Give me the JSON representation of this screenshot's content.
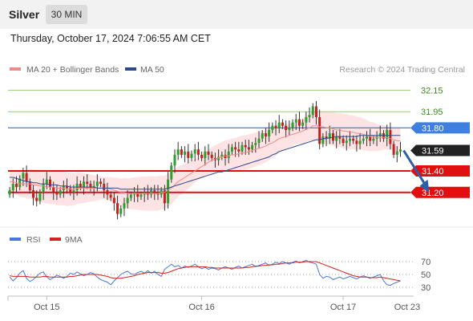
{
  "header": {
    "title": "Silver",
    "timeframe": "30 MIN"
  },
  "timestamp": "Thursday, October 17, 2024 7:06:55 AM CET",
  "legend": {
    "ma20": "MA 20 + Bollinger Bands",
    "ma50": "MA 50",
    "credit": "Research © 2024 Trading Central",
    "rsi": "RSI",
    "rsi_ma": "9MA"
  },
  "colors": {
    "up": "#2ca02c",
    "down": "#c81e1e",
    "band": "#fde3e3",
    "ma20": "#f08a8a",
    "ma50": "#2b4a8c",
    "resistance_green": "#9bc97a",
    "blue_level": "#3f7fe0",
    "red_level": "#e01010",
    "current": "#222222",
    "rsi": "#4a78d8",
    "rsi_ma": "#d42020"
  },
  "chart_data": [
    {
      "type": "candlestick",
      "title": "Silver",
      "y_axis": {
        "ylim": [
          30.9,
          32.28
        ],
        "side": "right"
      },
      "x_axis": {
        "ticks": [
          "Oct 15",
          "Oct 16",
          "Oct 17",
          "Oct 23"
        ]
      },
      "levels": [
        {
          "value": 32.15,
          "label": "32.15",
          "kind": "resistance"
        },
        {
          "value": 31.95,
          "label": "31.95",
          "kind": "resistance"
        },
        {
          "value": 31.8,
          "label": "31.80",
          "kind": "pivot"
        },
        {
          "value": 31.59,
          "label": "31.59",
          "kind": "current"
        },
        {
          "value": 31.4,
          "label": "31.40",
          "kind": "support"
        },
        {
          "value": 31.2,
          "label": "31.20",
          "kind": "support"
        }
      ],
      "close": [
        31.22,
        31.28,
        31.25,
        31.33,
        31.38,
        31.3,
        31.22,
        31.15,
        31.12,
        31.2,
        31.28,
        31.32,
        31.25,
        31.2,
        31.18,
        31.22,
        31.26,
        31.24,
        31.2,
        31.22,
        31.28,
        31.25,
        31.3,
        31.28,
        31.24,
        31.26,
        31.3,
        31.28,
        31.22,
        31.18,
        31.15,
        31.1,
        31.0,
        31.05,
        31.1,
        31.15,
        31.18,
        31.2,
        31.16,
        31.18,
        31.2,
        31.18,
        31.22,
        31.2,
        31.18,
        31.22,
        31.1,
        31.32,
        31.45,
        31.55,
        31.6,
        31.55,
        31.58,
        31.52,
        31.56,
        31.6,
        31.55,
        31.52,
        31.58,
        31.55,
        31.52,
        31.5,
        31.53,
        31.55,
        31.52,
        31.58,
        31.62,
        31.6,
        31.58,
        31.64,
        31.62,
        31.6,
        31.64,
        31.66,
        31.7,
        31.75,
        31.72,
        31.78,
        31.82,
        31.8,
        31.85,
        31.82,
        31.78,
        31.8,
        31.85,
        31.88,
        31.82,
        31.85,
        31.9,
        31.92,
        32.0,
        31.9,
        31.65,
        31.72,
        31.7,
        31.75,
        31.68,
        31.72,
        31.7,
        31.66,
        31.68,
        31.7,
        31.68,
        31.65,
        31.68,
        31.7,
        31.72,
        31.68,
        31.7,
        31.72,
        31.75,
        31.7,
        31.78,
        31.65,
        31.55,
        31.58,
        31.6
      ],
      "ma20": [
        31.3,
        31.3,
        31.29,
        31.28,
        31.28,
        31.28,
        31.28,
        31.27,
        31.27,
        31.26,
        31.26,
        31.25,
        31.25,
        31.25,
        31.24,
        31.24,
        31.24,
        31.23,
        31.23,
        31.23,
        31.24,
        31.24,
        31.24,
        31.24,
        31.24,
        31.24,
        31.24,
        31.24,
        31.24,
        31.24,
        31.23,
        31.22,
        31.21,
        31.2,
        31.2,
        31.19,
        31.19,
        31.19,
        31.19,
        31.19,
        31.19,
        31.19,
        31.19,
        31.19,
        31.19,
        31.2,
        31.2,
        31.22,
        31.24,
        31.27,
        31.3,
        31.32,
        31.34,
        31.36,
        31.38,
        31.4,
        31.42,
        31.44,
        31.46,
        31.48,
        31.5,
        31.51,
        31.52,
        31.53,
        31.54,
        31.54,
        31.55,
        31.55,
        31.56,
        31.57,
        31.57,
        31.58,
        31.59,
        31.6,
        31.61,
        31.62,
        31.63,
        31.65,
        31.66,
        31.68,
        31.7,
        31.71,
        31.72,
        31.73,
        31.74,
        31.75,
        31.76,
        31.77,
        31.79,
        31.8,
        31.82,
        31.82,
        31.81,
        31.81,
        31.8,
        31.8,
        31.79,
        31.78,
        31.78,
        31.77,
        31.77,
        31.76,
        31.76,
        31.75,
        31.75,
        31.74,
        31.73,
        31.72,
        31.72,
        31.71,
        31.71,
        31.71,
        31.71,
        31.7,
        31.69,
        31.68,
        31.68
      ],
      "ma50": [
        31.34,
        31.34,
        31.33,
        31.32,
        31.31,
        31.3,
        31.3,
        31.29,
        31.29,
        31.28,
        31.28,
        31.28,
        31.27,
        31.27,
        31.27,
        31.26,
        31.26,
        31.26,
        31.25,
        31.25,
        31.25,
        31.25,
        31.25,
        31.25,
        31.25,
        31.25,
        31.24,
        31.24,
        31.24,
        31.24,
        31.24,
        31.24,
        31.24,
        31.23,
        31.23,
        31.23,
        31.23,
        31.23,
        31.23,
        31.23,
        31.23,
        31.23,
        31.23,
        31.23,
        31.23,
        31.23,
        31.23,
        31.24,
        31.25,
        31.26,
        31.27,
        31.28,
        31.29,
        31.3,
        31.31,
        31.32,
        31.33,
        31.34,
        31.35,
        31.36,
        31.37,
        31.38,
        31.39,
        31.39,
        31.4,
        31.41,
        31.42,
        31.43,
        31.44,
        31.45,
        31.46,
        31.47,
        31.48,
        31.49,
        31.5,
        31.51,
        31.52,
        31.53,
        31.55,
        31.56,
        31.58,
        31.59,
        31.6,
        31.61,
        31.62,
        31.63,
        31.64,
        31.65,
        31.66,
        31.67,
        31.68,
        31.69,
        31.69,
        31.7,
        31.7,
        31.71,
        31.71,
        31.72,
        31.72,
        31.72,
        31.72,
        31.72,
        31.72,
        31.72,
        31.73,
        31.73,
        31.73,
        31.73,
        31.73,
        31.73,
        31.73,
        31.73,
        31.73,
        31.73,
        31.73,
        31.73,
        31.73
      ],
      "projection": [
        31.59,
        31.2
      ]
    },
    {
      "type": "line",
      "title": "RSI",
      "ylim": [
        25,
        80
      ],
      "y_ticks": [
        70,
        50,
        30
      ],
      "series": [
        {
          "name": "RSI",
          "values": [
            46,
            40,
            45,
            52,
            56,
            44,
            39,
            42,
            47,
            52,
            54,
            46,
            42,
            45,
            49,
            47,
            44,
            47,
            52,
            50,
            54,
            51,
            48,
            50,
            53,
            51,
            46,
            42,
            40,
            38,
            34,
            40,
            45,
            50,
            53,
            55,
            51,
            50,
            53,
            55,
            52,
            56,
            52,
            55,
            50,
            47,
            58,
            62,
            66,
            62,
            64,
            60,
            63,
            61,
            63,
            66,
            62,
            59,
            61,
            58,
            60,
            59,
            57,
            60,
            62,
            60,
            58,
            61,
            63,
            60,
            62,
            64,
            66,
            62,
            64,
            66,
            68,
            64,
            66,
            69,
            67,
            70,
            68,
            66,
            69,
            71,
            68,
            70,
            72,
            69,
            68,
            66,
            50,
            44,
            47,
            46,
            42,
            44,
            46,
            43,
            45,
            47,
            45,
            43,
            46,
            48,
            46,
            44,
            46,
            48,
            50,
            40,
            34,
            33,
            36,
            38,
            40
          ]
        },
        {
          "name": "9MA",
          "values": [
            48,
            47,
            47,
            47,
            47,
            47,
            46,
            46,
            46,
            46,
            47,
            47,
            46,
            46,
            46,
            46,
            46,
            46,
            47,
            47,
            48,
            49,
            50,
            50,
            50,
            50,
            50,
            49,
            48,
            47,
            45,
            44,
            44,
            44,
            45,
            46,
            47,
            48,
            50,
            51,
            52,
            53,
            53,
            53,
            53,
            52,
            52,
            53,
            55,
            57,
            59,
            60,
            61,
            62,
            62,
            62,
            62,
            62,
            62,
            61,
            61,
            60,
            60,
            60,
            60,
            60,
            60,
            60,
            60,
            60,
            61,
            61,
            62,
            63,
            63,
            64,
            64,
            65,
            65,
            66,
            66,
            67,
            68,
            68,
            68,
            69,
            69,
            69,
            70,
            70,
            70,
            70,
            68,
            66,
            64,
            62,
            60,
            58,
            56,
            54,
            52,
            50,
            48,
            47,
            46,
            46,
            46,
            45,
            45,
            45,
            46,
            45,
            44,
            43,
            42,
            41,
            40
          ]
        }
      ]
    }
  ]
}
